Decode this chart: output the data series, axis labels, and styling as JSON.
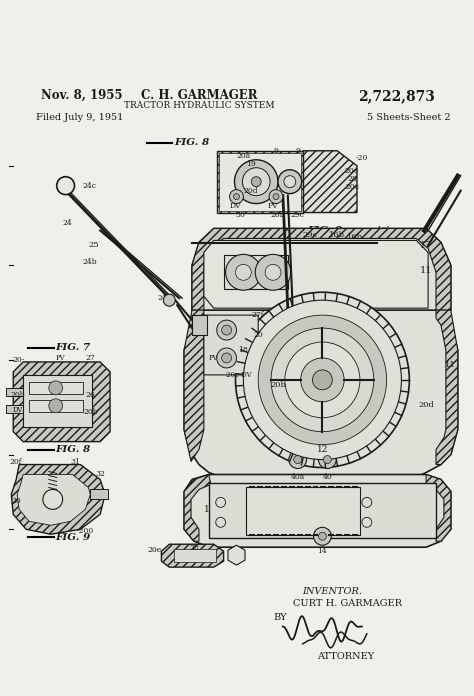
{
  "page_color": "#f0f0eb",
  "title_date": "Nov. 8, 1955",
  "title_inventor": "C. H. GARMAGER",
  "title_patent": "2,722,873",
  "title_subject": "TRACTOR HYDRAULIC SYSTEM",
  "filed_text": "Filed July 9, 1951",
  "sheets_text": "5 Sheets-Sheet 2",
  "inventor_label": "INVENTOR.",
  "inventor_name": "CURT H. GARMAGER",
  "by_label": "BY",
  "attorney_label": "ATTORNEY",
  "dark": "#1a1a1a",
  "gray_hatch": "#888888",
  "gray_fill": "#c8c8c0",
  "gray_light": "#e0e0d8",
  "gray_mid": "#b0b0a8"
}
